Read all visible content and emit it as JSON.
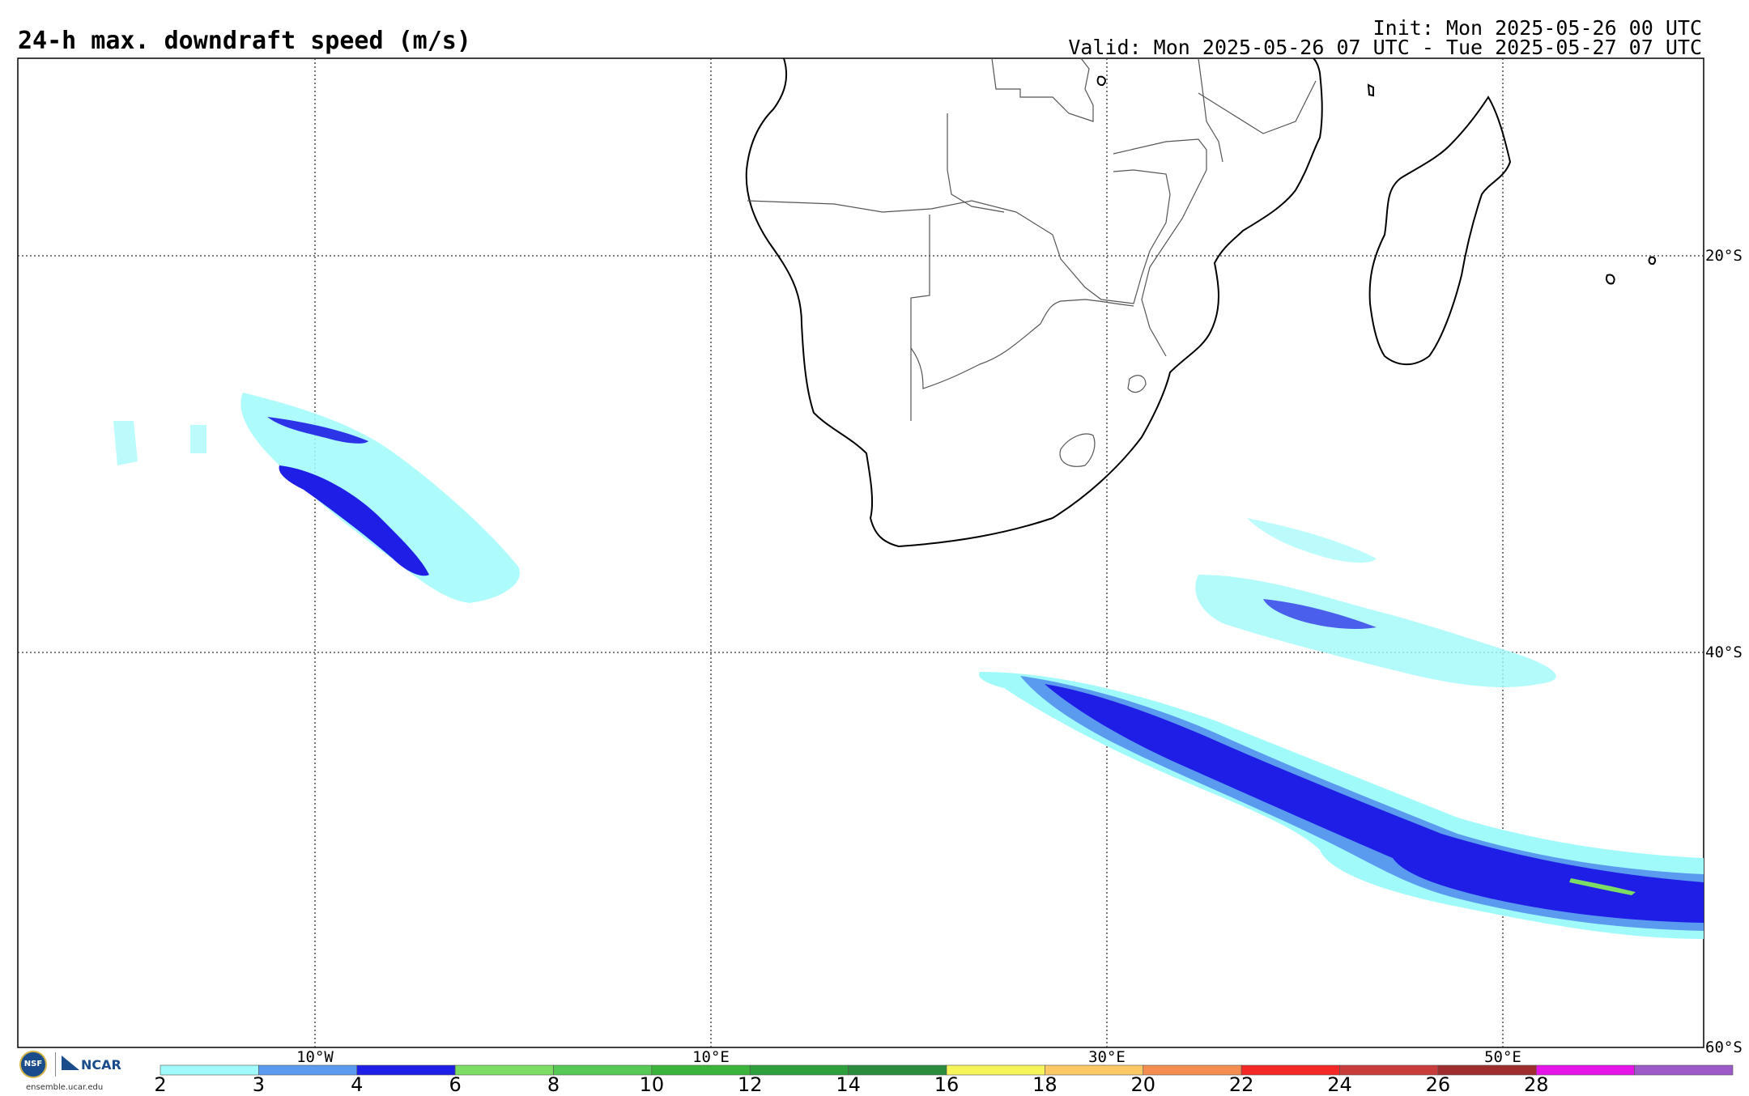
{
  "header": {
    "title": "24-h max. downdraft speed (m/s)",
    "init": "Init: Mon 2025-05-26 00 UTC",
    "valid": "Valid: Mon 2025-05-26 07 UTC - Tue 2025-05-27 07 UTC"
  },
  "map": {
    "lon_labels": [
      "10°W",
      "10°E",
      "30°E",
      "50°E"
    ],
    "lat_labels": [
      "20°S",
      "40°S",
      "60°S"
    ]
  },
  "colorbar": {
    "ticks": [
      "2",
      "3",
      "4",
      "6",
      "8",
      "10",
      "12",
      "14",
      "16",
      "18",
      "20",
      "22",
      "24",
      "26",
      "28"
    ],
    "colors": [
      "#a0fafa",
      "#5a9bf0",
      "#1e1ee6",
      "#7ddc64",
      "#55c855",
      "#3cb43c",
      "#2da03c",
      "#2a8c3c",
      "#f5f55a",
      "#fac864",
      "#f58c50",
      "#f52828",
      "#c83c3c",
      "#a02d2d",
      "#e614e6",
      "#9b5ac8"
    ]
  },
  "branding": {
    "nsf": "NSF",
    "ncar": "NCAR",
    "site": "ensemble.ucar.edu"
  }
}
